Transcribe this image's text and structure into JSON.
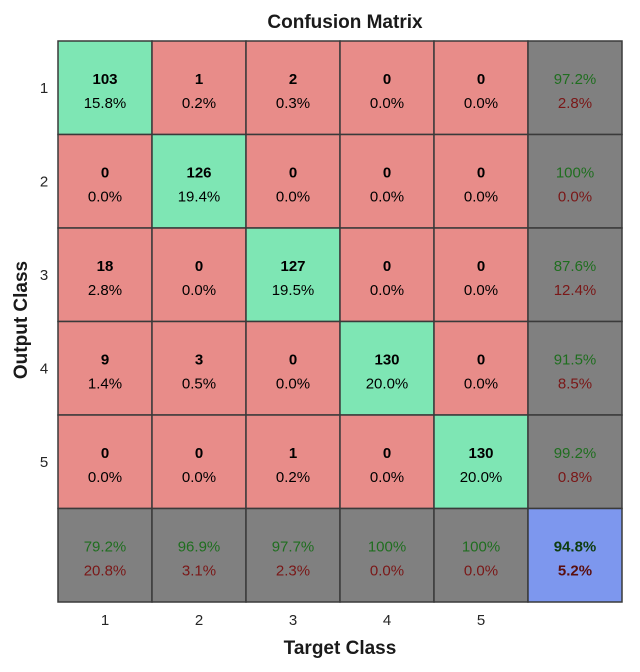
{
  "chart_data": {
    "type": "heatmap",
    "title": "Confusion Matrix",
    "xlabel": "Target Class",
    "ylabel": "Output Class",
    "x_tick_labels": [
      "1",
      "2",
      "3",
      "4",
      "5"
    ],
    "y_tick_labels": [
      "1",
      "2",
      "3",
      "4",
      "5"
    ],
    "counts": [
      [
        103,
        1,
        2,
        0,
        0
      ],
      [
        0,
        126,
        0,
        0,
        0
      ],
      [
        18,
        0,
        127,
        0,
        0
      ],
      [
        9,
        3,
        0,
        130,
        0
      ],
      [
        0,
        0,
        1,
        0,
        130
      ]
    ],
    "percents": [
      [
        "15.8%",
        "0.2%",
        "0.3%",
        "0.0%",
        "0.0%"
      ],
      [
        "0.0%",
        "19.4%",
        "0.0%",
        "0.0%",
        "0.0%"
      ],
      [
        "2.8%",
        "0.0%",
        "19.5%",
        "0.0%",
        "0.0%"
      ],
      [
        "1.4%",
        "0.5%",
        "0.0%",
        "20.0%",
        "0.0%"
      ],
      [
        "0.0%",
        "0.0%",
        "0.2%",
        "0.0%",
        "20.0%"
      ]
    ],
    "row_summary": [
      [
        "97.2%",
        "2.8%"
      ],
      [
        "100%",
        "0.0%"
      ],
      [
        "87.6%",
        "12.4%"
      ],
      [
        "91.5%",
        "8.5%"
      ],
      [
        "99.2%",
        "0.8%"
      ]
    ],
    "column_summary": [
      [
        "79.2%",
        "20.8%"
      ],
      [
        "96.9%",
        "3.1%"
      ],
      [
        "97.7%",
        "2.3%"
      ],
      [
        "100%",
        "0.0%"
      ],
      [
        "100%",
        "0.0%"
      ]
    ],
    "overall": [
      "94.8%",
      "5.2%"
    ],
    "colors": {
      "diagonal": "#7ee6b4",
      "off_diagonal": "#e88c89",
      "summary": "#808080",
      "overall": "#7d97ee",
      "grid_line": "#3a3a3a"
    }
  }
}
